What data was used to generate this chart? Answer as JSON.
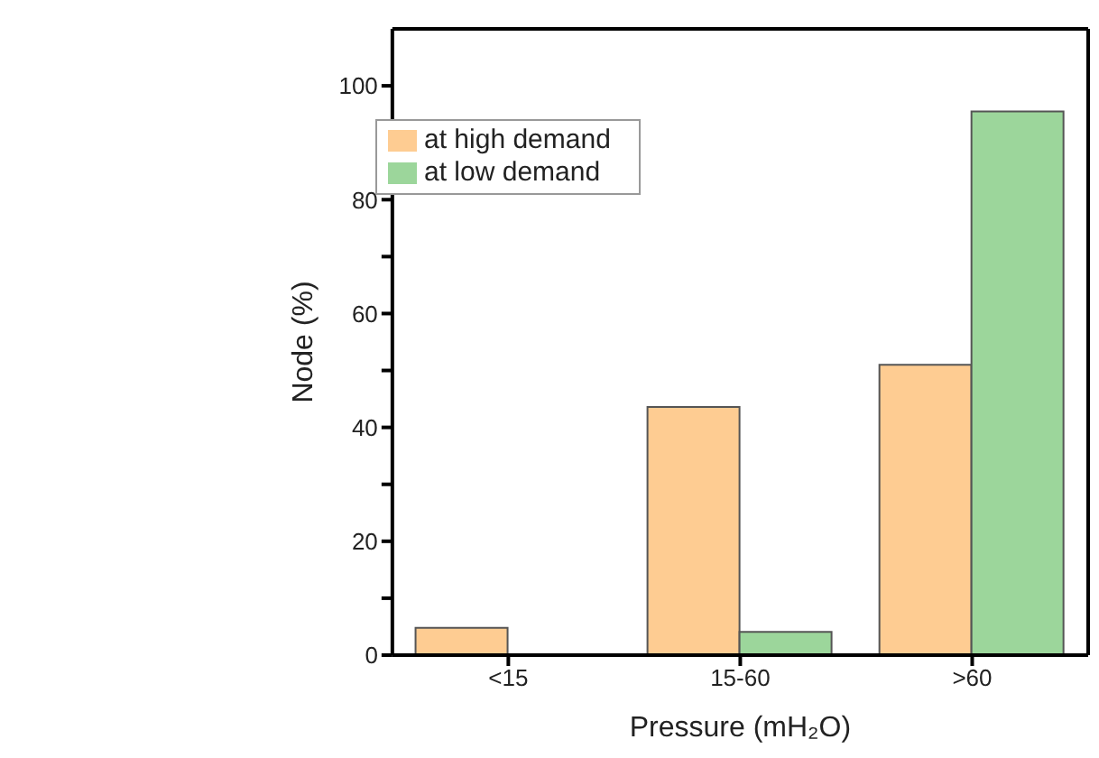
{
  "chart_data": {
    "type": "bar",
    "xlabel": "Pressure (mH₂O)",
    "ylabel": "Node (%)",
    "categories": [
      "<15",
      "15-60",
      ">60"
    ],
    "series": [
      {
        "name": "at high demand",
        "color": "#fecc92",
        "values": [
          4.8,
          43.6,
          51.0
        ]
      },
      {
        "name": "at low demand",
        "color": "#9cd69b",
        "values": [
          0,
          4.1,
          95.5
        ]
      }
    ],
    "ylim": [
      0,
      110
    ],
    "yticks": [
      0,
      {
        "value": 10,
        "label": null
      },
      20,
      {
        "value": 30,
        "label": null
      },
      40,
      {
        "value": 50,
        "label": null
      },
      60,
      {
        "value": 70,
        "label": null
      },
      80,
      {
        "value": 90,
        "label": null
      },
      100
    ],
    "grid": false,
    "legend": "top"
  }
}
